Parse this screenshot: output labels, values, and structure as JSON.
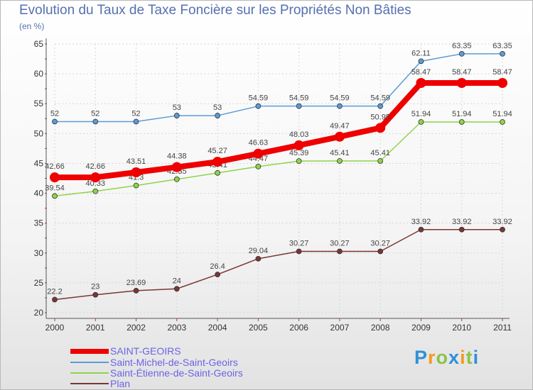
{
  "chart_data": {
    "type": "line",
    "title": "Evolution du Taux de Taxe Foncière sur les Propriétés Non Bâties",
    "subtitle": "(en %)",
    "categories": [
      "2000",
      "2001",
      "2002",
      "2003",
      "2004",
      "2005",
      "2006",
      "2007",
      "2008",
      "2009",
      "2010",
      "2011"
    ],
    "ylim": [
      20,
      65
    ],
    "yticks": [
      20,
      25,
      30,
      35,
      40,
      45,
      50,
      55,
      60,
      65
    ],
    "grid": true,
    "legend_position": "bottom-left",
    "series": [
      {
        "name": "Saint-Michel-de-Saint-Geoirs",
        "color": "#5b9bd5",
        "values": [
          52,
          52,
          52,
          53,
          53,
          54.59,
          54.59,
          54.59,
          54.59,
          62.11,
          63.35,
          63.35
        ],
        "labels": [
          "52",
          "52",
          "52",
          "53",
          "53",
          "54.59",
          "54.59",
          "54.59",
          "54.59",
          "62.11",
          "63.35",
          "63.35"
        ]
      },
      {
        "name": "Saint-Étienne-de-Saint-Geoirs",
        "color": "#8fd34a",
        "values": [
          39.54,
          40.33,
          41.3,
          42.35,
          43.41,
          44.47,
          45.39,
          45.41,
          45.41,
          51.94,
          51.94,
          51.94
        ],
        "labels": [
          "39.54",
          "40.33",
          "41.3",
          "42.35",
          "43.41",
          "44.47",
          "45.39",
          "45.41",
          "45.41",
          "51.94",
          "51.94",
          "51.94"
        ]
      },
      {
        "name": "Plan",
        "color": "#7a3535",
        "values": [
          22.2,
          23,
          23.69,
          24,
          26.4,
          29.04,
          30.27,
          30.27,
          30.27,
          33.92,
          33.92,
          33.92
        ],
        "labels": [
          "22.2",
          "23",
          "23.69",
          "24",
          "26.4",
          "29.04",
          "30.27",
          "30.27",
          "30.27",
          "33.92",
          "33.92",
          "33.92"
        ]
      },
      {
        "name": "SAINT-GEOIRS",
        "color": "#ee0000",
        "values": [
          42.66,
          42.66,
          43.51,
          44.38,
          45.27,
          46.63,
          48.03,
          49.47,
          50.95,
          58.47,
          58.47,
          58.47
        ],
        "labels": [
          "42.66",
          "42.66",
          "43.51",
          "44.38",
          "45.27",
          "46.63",
          "48.03",
          "49.47",
          "50.95",
          "58.47",
          "58.47",
          "58.47"
        ]
      }
    ]
  },
  "legend": [
    {
      "label": "SAINT-GEOIRS",
      "color": "#ee0000"
    },
    {
      "label": "Saint-Michel-de-Saint-Geoirs",
      "color": "#5b9bd5"
    },
    {
      "label": "Saint-Étienne-de-Saint-Geoirs",
      "color": "#8fd34a"
    },
    {
      "label": "Plan",
      "color": "#7a3535"
    }
  ],
  "logo": {
    "text": "Proxiti",
    "letters": [
      {
        "ch": "P",
        "color": "#2f8fd8"
      },
      {
        "ch": "r",
        "color": "#f39a1e"
      },
      {
        "ch": "o",
        "color": "#8bc34a"
      },
      {
        "ch": "x",
        "color": "#2f8fd8"
      },
      {
        "ch": "i",
        "color": "#f39a1e"
      },
      {
        "ch": "t",
        "color": "#8bc34a"
      },
      {
        "ch": "i",
        "color": "#2f8fd8"
      }
    ]
  }
}
